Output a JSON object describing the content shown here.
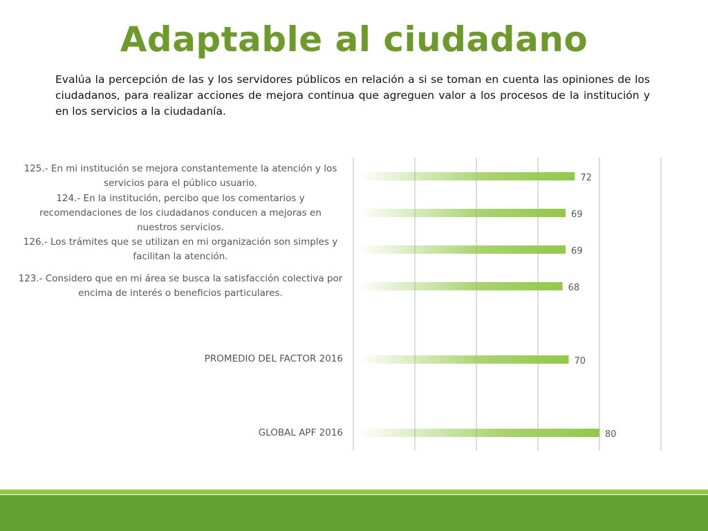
{
  "title": "Adaptable al ciudadano",
  "description": "Evalúa la percepción de las y los servidores públicos en relación a si se toman en cuenta las opiniones de los ciudadanos, para realizar acciones de mejora continua que agreguen valor a los procesos de la institución y en los servicios a la ciudadanía.",
  "colors": {
    "title": "#6e9a2c",
    "bar": "#92c84a",
    "footer_dark": "#64a133",
    "footer_light": "#92c84a"
  },
  "chart_data": {
    "type": "bar",
    "orientation": "horizontal",
    "categories": [
      "125.- En mi institución se mejora constantemente la atención y los servicios para el público usuario.",
      "124.- En la institución, percibo que los comentarios y recomendaciones de los ciudadanos conducen a mejoras en nuestros servicios.",
      "126.- Los trámites que se utilizan en mi organización son simples y facilitan la atención.",
      "123.- Considero que en mi área se busca la satisfacción colectiva por encima de interés o beneficios particulares.",
      "PROMEDIO DEL FACTOR   2016",
      "GLOBAL APF   2016"
    ],
    "values": [
      72,
      69,
      69,
      68,
      70,
      80
    ],
    "data_labels": [
      "72",
      "69",
      "69",
      "68",
      "70",
      "80"
    ],
    "xlim": [
      0,
      100
    ],
    "grid": true,
    "legend": "none"
  }
}
